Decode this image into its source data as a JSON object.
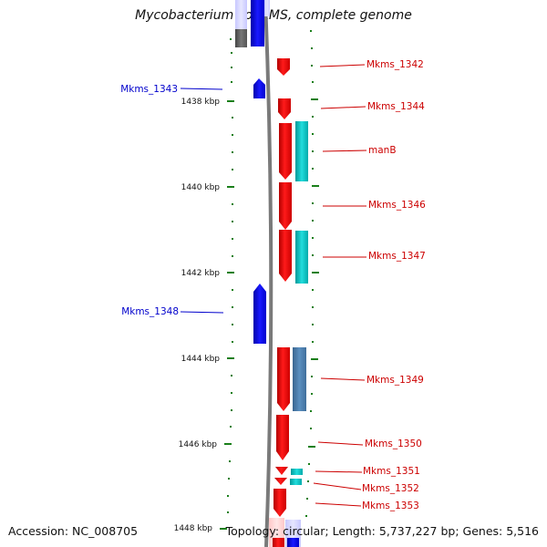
{
  "title": "Mycobacterium sp. KMS, complete genome",
  "footer": {
    "accession": "Accession: NC_008705",
    "summary": "Topology: circular; Length: 5,737,227 bp; Genes: 5,516"
  },
  "colors": {
    "forward_gene": "#ff0000",
    "reverse_gene": "#0000ff",
    "cds_cyan": "#00cccc",
    "cds_steel": "#4a7fb0",
    "tick": "#1a7f1a",
    "backbone": "#808080",
    "forward_label": "#cc0000",
    "reverse_label": "#0000cc"
  },
  "axis_labels": [
    {
      "label": "1438 kbp",
      "kbp": 1438
    },
    {
      "label": "1440 kbp",
      "kbp": 1440
    },
    {
      "label": "1442 kbp",
      "kbp": 1442
    },
    {
      "label": "1444 kbp",
      "kbp": 1444
    },
    {
      "label": "1446 kbp",
      "kbp": 1446
    },
    {
      "label": "1448 kbp",
      "kbp": 1448
    }
  ],
  "gene_labels": [
    {
      "name": "Mkms_1342",
      "strand": "forward"
    },
    {
      "name": "Mkms_1343",
      "strand": "reverse"
    },
    {
      "name": "Mkms_1344",
      "strand": "forward"
    },
    {
      "name": "manB",
      "strand": "forward"
    },
    {
      "name": "Mkms_1346",
      "strand": "forward"
    },
    {
      "name": "Mkms_1347",
      "strand": "forward"
    },
    {
      "name": "Mkms_1348",
      "strand": "reverse"
    },
    {
      "name": "Mkms_1349",
      "strand": "forward"
    },
    {
      "name": "Mkms_1350",
      "strand": "forward"
    },
    {
      "name": "Mkms_1351",
      "strand": "forward"
    },
    {
      "name": "Mkms_1352",
      "strand": "forward"
    },
    {
      "name": "Mkms_1353",
      "strand": "forward"
    }
  ]
}
